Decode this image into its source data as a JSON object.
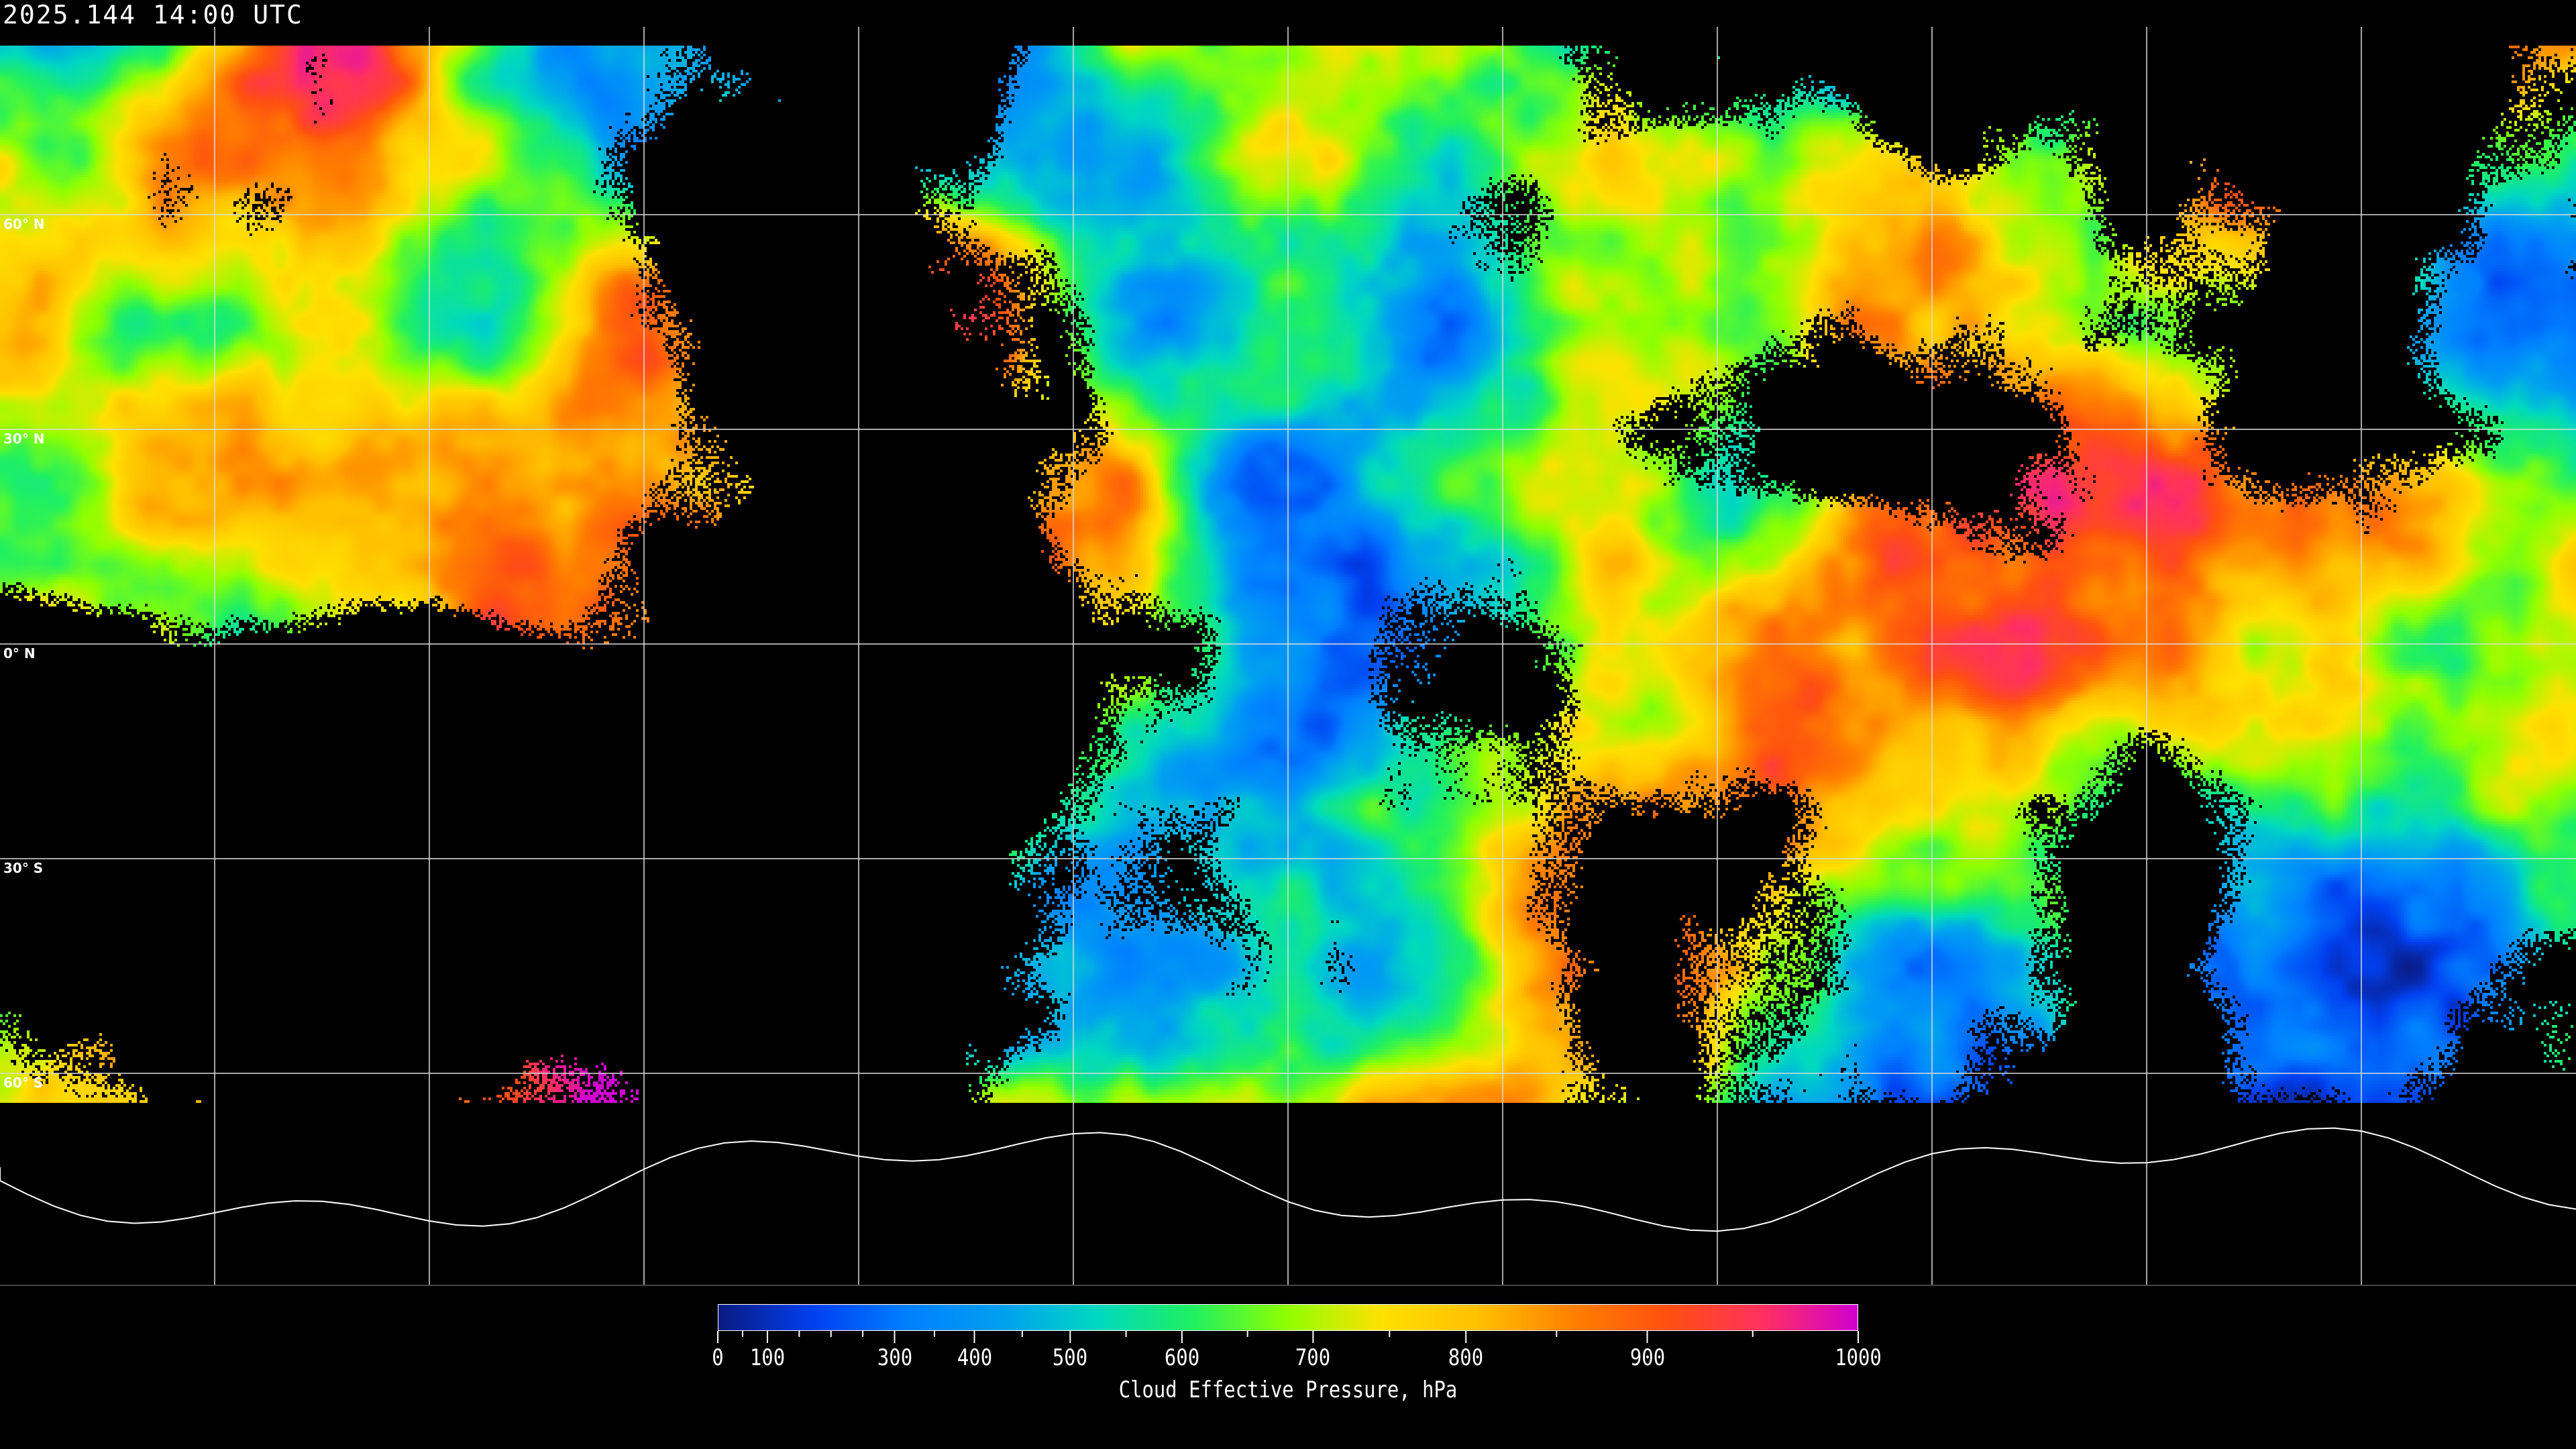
{
  "header": {
    "timestamp": "2025.144 14:00 UTC"
  },
  "map": {
    "projection": "equirectangular",
    "grid_spacing_deg": 30,
    "latitude_labels": [
      "60° N",
      "30° N",
      "0° N",
      "30° S",
      "60° S"
    ],
    "gridline_color": "#ffffff",
    "coastline_color": "#ffffff",
    "no_data_color": "#000000"
  },
  "colorbar": {
    "title": "Cloud Effective Pressure, hPa",
    "range": [
      0,
      1000
    ],
    "tick_labels": [
      "0",
      "100",
      "300",
      "400",
      "500",
      "600",
      "700",
      "800",
      "900",
      "1000"
    ],
    "minor_ticks": [
      50,
      150,
      200,
      250,
      350,
      450,
      550,
      650,
      750,
      850,
      950
    ],
    "colors": [
      "#0a1a80",
      "#0040f0",
      "#0080ff",
      "#00a0f0",
      "#00d8c0",
      "#20f060",
      "#90ff00",
      "#ffe000",
      "#ffc000",
      "#ff8000",
      "#ff5010",
      "#ff3060",
      "#d000d0"
    ]
  }
}
